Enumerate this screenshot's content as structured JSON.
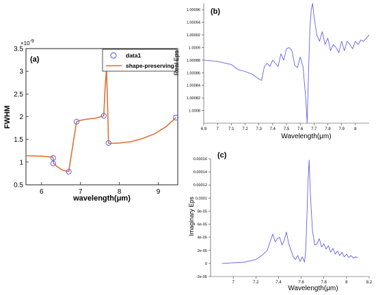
{
  "chart_data": [
    {
      "panel": "(a)",
      "type": "line",
      "xlabel": "wavelength(μm)",
      "ylabel": "FWHM",
      "exponent_label": "×10",
      "exponent_power": "-9",
      "xlim": [
        5.6,
        9.5
      ],
      "ylim": [
        0.5,
        3.5
      ],
      "xticks": [
        6,
        7,
        8,
        9
      ],
      "yticks": [
        0.5,
        1,
        1.5,
        2,
        2.5,
        3,
        3.5
      ],
      "legend": {
        "position": "top-right",
        "entries": [
          "data1",
          "shape-preserving"
        ]
      },
      "series": [
        {
          "name": "data1",
          "style": "markers",
          "color": "#6a6af0",
          "x": [
            6.3,
            6.3,
            6.7,
            6.9,
            7.6,
            7.67,
            7.72,
            9.45
          ],
          "y": [
            1.09,
            0.97,
            0.79,
            1.89,
            2.02,
            3.07,
            1.42,
            1.98
          ]
        },
        {
          "name": "shape-preserving",
          "style": "line",
          "color": "#e07030",
          "x": [
            5.6,
            6.0,
            6.28,
            6.3,
            6.31,
            6.4,
            6.55,
            6.7,
            6.8,
            6.9,
            7.0,
            7.2,
            7.4,
            7.6,
            7.63,
            7.67,
            7.7,
            7.72,
            7.75,
            8.0,
            8.3,
            8.6,
            8.9,
            9.2,
            9.45
          ],
          "y": [
            1.14,
            1.13,
            1.11,
            1.09,
            0.97,
            0.9,
            0.82,
            0.79,
            1.35,
            1.89,
            1.92,
            1.95,
            1.97,
            2.02,
            2.6,
            3.07,
            2.2,
            1.42,
            1.41,
            1.42,
            1.45,
            1.52,
            1.62,
            1.78,
            1.98
          ]
        }
      ]
    },
    {
      "panel": "(b)",
      "type": "line",
      "xlabel": "Wavelength(μm)",
      "ylabel": "Real Eps",
      "xlim": [
        6.9,
        8.1
      ],
      "ylim": [
        1.00078,
        1.00097
      ],
      "xticks": [
        "6.9",
        "7",
        "7.1",
        "7.2",
        "7.3",
        "7.4",
        "7.5",
        "7.6",
        "7.7",
        "7.8",
        "7.9",
        "8"
      ],
      "yticks": [
        "1.0008",
        "1.00082",
        "1.00084",
        "1.00086",
        "1.00088",
        "1.0009",
        "1.00092",
        "1.00094",
        "1.00096"
      ],
      "series": [
        {
          "color": "#6060e8",
          "x": [
            6.9,
            7.0,
            7.1,
            7.15,
            7.2,
            7.25,
            7.3,
            7.32,
            7.34,
            7.36,
            7.38,
            7.4,
            7.42,
            7.44,
            7.46,
            7.48,
            7.5,
            7.52,
            7.54,
            7.56,
            7.58,
            7.6,
            7.62,
            7.64,
            7.65,
            7.66,
            7.67,
            7.68,
            7.69,
            7.7,
            7.72,
            7.74,
            7.76,
            7.78,
            7.8,
            7.82,
            7.84,
            7.86,
            7.88,
            7.9,
            7.92,
            7.94,
            7.96,
            7.98,
            8.0,
            8.02,
            8.04,
            8.06,
            8.08,
            8.1
          ],
          "y": [
            1.00088,
            1.000878,
            1.000873,
            1.000865,
            1.000862,
            1.000858,
            1.00085,
            1.000848,
            1.00087,
            1.000875,
            1.00087,
            1.00088,
            1.000875,
            1.00087,
            1.00089,
            1.00088,
            1.000898,
            1.0009,
            1.000895,
            1.000872,
            1.000868,
            1.000885,
            1.00087,
            1.00082,
            1.00078,
            1.00086,
            1.00093,
            1.00096,
            1.00097,
            1.00095,
            1.00092,
            1.00091,
            1.000925,
            1.000905,
            1.000915,
            1.000895,
            1.000905,
            1.0009,
            1.000892,
            1.00091,
            1.000895,
            1.00091,
            1.000905,
            1.000898,
            1.00091,
            1.000905,
            1.000912,
            1.00091,
            1.000915,
            1.00092
          ]
        }
      ]
    },
    {
      "panel": "(c)",
      "type": "line",
      "xlabel": "Wavelength(μm)",
      "ylabel": "Imaginary Eps",
      "xlim": [
        6.8,
        8.2
      ],
      "ylim": [
        -2e-05,
        0.00016
      ],
      "xticks": [
        "7",
        "7.2",
        "7.4",
        "7.6",
        "7.8",
        "8",
        "8.2"
      ],
      "yticks": [
        "-2e-05",
        "0",
        "2e-05",
        "4e-05",
        "6e-05",
        "8e-05",
        "0.0001",
        "0.00012",
        "0.00014",
        "0.00016"
      ],
      "series": [
        {
          "color": "#6060e8",
          "x": [
            6.9,
            7.0,
            7.1,
            7.2,
            7.25,
            7.3,
            7.33,
            7.35,
            7.37,
            7.39,
            7.41,
            7.43,
            7.45,
            7.47,
            7.49,
            7.51,
            7.53,
            7.55,
            7.57,
            7.59,
            7.61,
            7.63,
            7.64,
            7.65,
            7.66,
            7.67,
            7.68,
            7.7,
            7.72,
            7.74,
            7.76,
            7.78,
            7.8,
            7.82,
            7.84,
            7.86,
            7.88,
            7.9,
            7.92,
            7.94,
            7.96,
            7.98,
            8.0,
            8.02,
            8.04,
            8.06,
            8.08,
            8.1
          ],
          "y": [
            0.0,
            1e-06,
            2e-06,
            6e-06,
            1.2e-05,
            2e-05,
            3.5e-05,
            4.5e-05,
            3.3e-05,
            3.8e-05,
            4e-05,
            2.8e-05,
            3.5e-05,
            4.8e-05,
            3e-05,
            2e-05,
            1e-05,
            6e-06,
            1.2e-05,
            3e-06,
            1e-05,
            2e-06,
            2e-05,
            7e-05,
            0.000125,
            0.000158,
            0.00011,
            5e-05,
            2.8e-05,
            3e-05,
            3.8e-05,
            2.5e-05,
            3e-05,
            2.2e-05,
            2.7e-05,
            1.7e-05,
            2.3e-05,
            1.4e-05,
            1.9e-05,
            1.2e-05,
            1.7e-05,
            1e-05,
            1.4e-05,
            9e-06,
            1.2e-05,
            8e-06,
            1e-05,
            9e-06
          ]
        }
      ]
    }
  ]
}
